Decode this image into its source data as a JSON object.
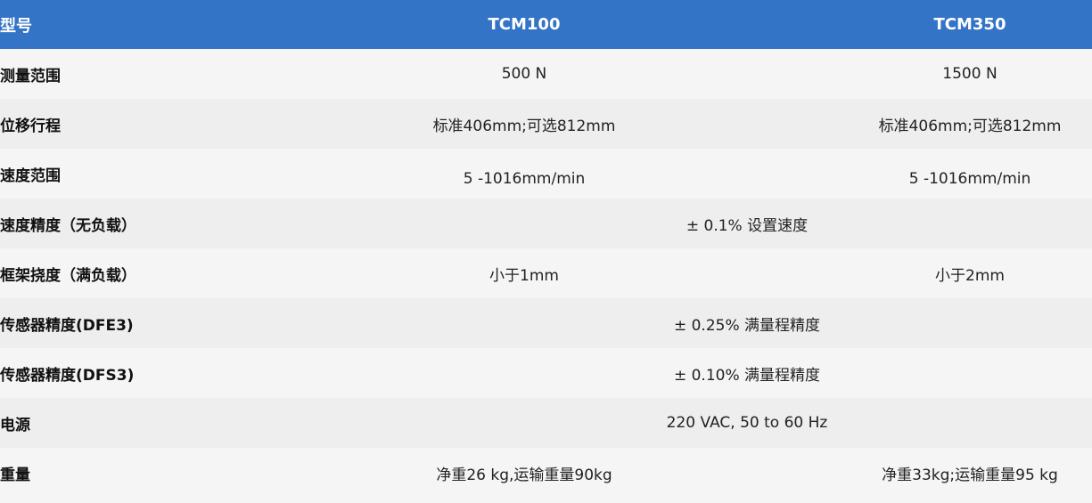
{
  "header": {
    "label": "型号",
    "models": [
      "TCM100",
      "TCM350"
    ]
  },
  "rows": [
    {
      "label": "测量范围",
      "values": [
        "500 N",
        "1500 N"
      ]
    },
    {
      "label": "位移行程",
      "values": [
        "标准406mm;可选812mm",
        "标准406mm;可选812mm"
      ]
    },
    {
      "label": "速度范围",
      "values": [
        "5 -1016mm/min",
        "5 -1016mm/min"
      ]
    },
    {
      "label": "速度精度（无负载）",
      "span": "± 0.1% 设置速度"
    },
    {
      "label": "框架挠度（满负载）",
      "values": [
        "小于1mm",
        "小于2mm"
      ]
    },
    {
      "label": "传感器精度(DFE3)",
      "span": "± 0.25% 满量程精度"
    },
    {
      "label": "传感器精度(DFS3)",
      "span": "± 0.10% 满量程精度"
    },
    {
      "label": "电源",
      "span": "220 VAC, 50 to 60 Hz"
    },
    {
      "label": "重量",
      "values": [
        "净重26 kg,运输重量90kg",
        "净重33kg;运输重量95 kg"
      ]
    }
  ],
  "colors": {
    "header_bg": "#3374c6",
    "row_odd": "#f5f5f5",
    "row_even": "#eeeeee"
  }
}
